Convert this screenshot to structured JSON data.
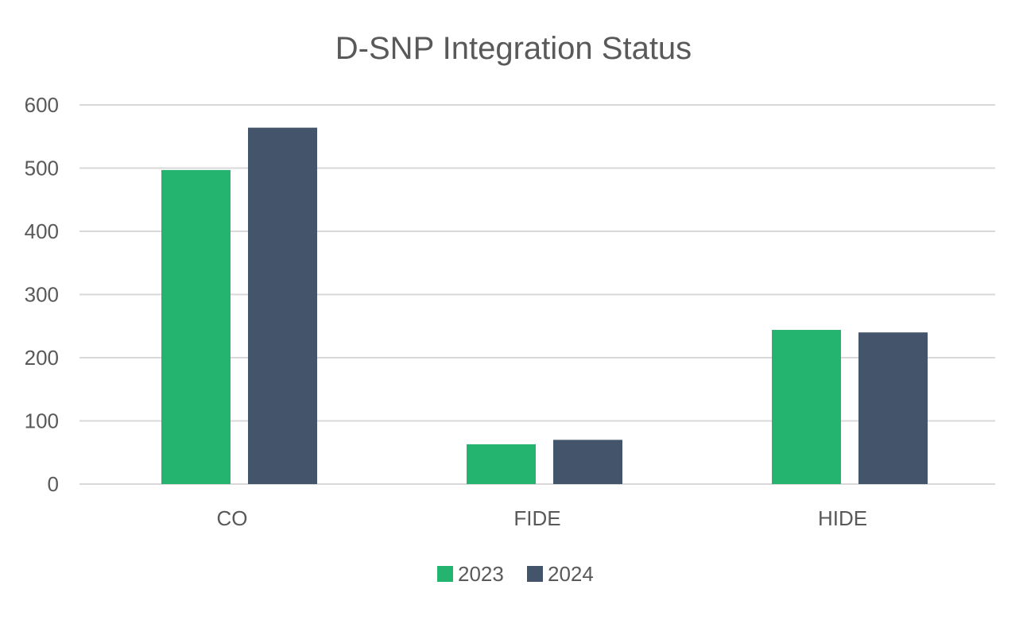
{
  "chart_data": {
    "type": "bar",
    "title": "D-SNP Integration Status",
    "categories": [
      "CO",
      "FIDE",
      "HIDE"
    ],
    "series": [
      {
        "name": "2023",
        "values": [
          497,
          63,
          244
        ],
        "color": "#25b46f"
      },
      {
        "name": "2024",
        "values": [
          564,
          70,
          240
        ],
        "color": "#44546a"
      }
    ],
    "ylim": [
      0,
      600
    ],
    "yticks": [
      "0",
      "100",
      "200",
      "300",
      "400",
      "500",
      "600"
    ],
    "grid": true,
    "legend_position": "bottom"
  }
}
